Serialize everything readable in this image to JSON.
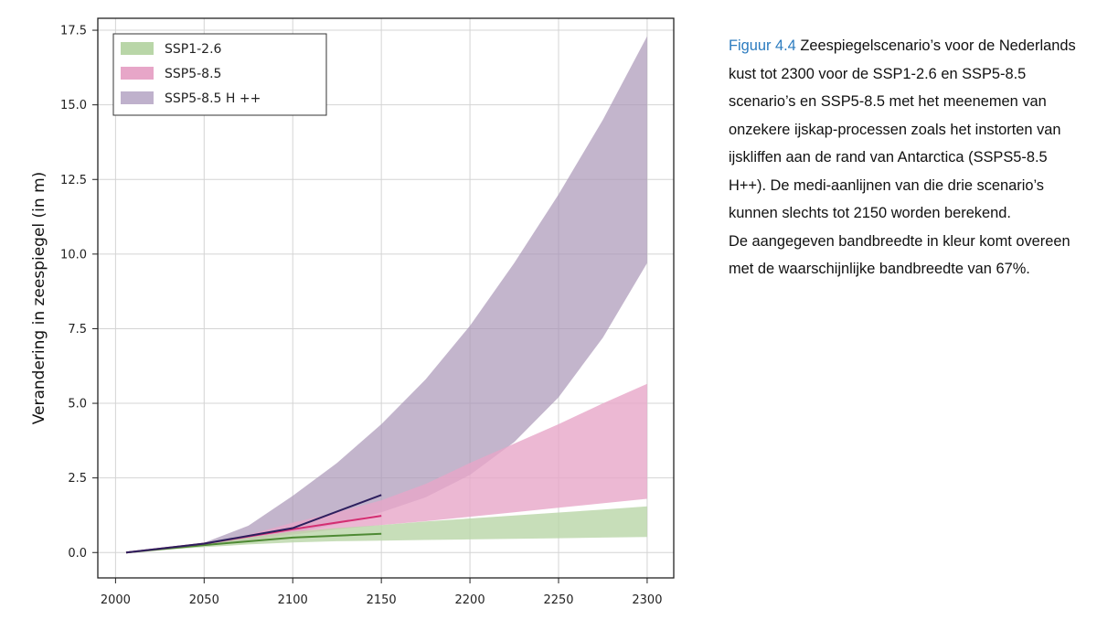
{
  "chart_data": {
    "type": "area",
    "xlabel": "",
    "ylabel": "Verandering in zeespiegel (in m)",
    "xlim": [
      1990,
      2315
    ],
    "ylim": [
      -0.85,
      17.9
    ],
    "xticks": [
      2000,
      2050,
      2100,
      2150,
      2200,
      2250,
      2300
    ],
    "xtick_labels": [
      "2000",
      "2050",
      "2100",
      "2150",
      "2200",
      "2250",
      "2300"
    ],
    "yticks": [
      0,
      2.5,
      5,
      7.5,
      10,
      12.5,
      15,
      17.5
    ],
    "ytick_labels": [
      "0.0",
      "2.5",
      "5.0",
      "7.5",
      "10.0",
      "12.5",
      "15.0",
      "17.5"
    ],
    "grid": true,
    "legend_position": "top-left",
    "bands": [
      {
        "name": "SSP5-8.5 H ++",
        "color": "#a996b6",
        "opacity": 0.7,
        "x": [
          2006,
          2020,
          2050,
          2075,
          2100,
          2125,
          2150,
          2175,
          2200,
          2225,
          2250,
          2275,
          2300
        ],
        "lower": [
          0,
          0.08,
          0.22,
          0.42,
          0.65,
          0.95,
          1.35,
          1.85,
          2.6,
          3.7,
          5.2,
          7.2,
          9.7
        ],
        "upper": [
          0,
          0.08,
          0.33,
          0.9,
          1.9,
          3.0,
          4.3,
          5.8,
          7.6,
          9.7,
          12.0,
          14.5,
          17.3
        ]
      },
      {
        "name": "SSP5-8.5",
        "color": "#e7a6c8",
        "opacity": 0.8,
        "x": [
          2006,
          2020,
          2050,
          2075,
          2100,
          2125,
          2150,
          2175,
          2200,
          2225,
          2250,
          2275,
          2300
        ],
        "lower": [
          0,
          0.07,
          0.22,
          0.4,
          0.6,
          0.78,
          0.92,
          1.05,
          1.2,
          1.35,
          1.5,
          1.65,
          1.8
        ],
        "upper": [
          0,
          0.08,
          0.3,
          0.6,
          1.0,
          1.35,
          1.75,
          2.3,
          3.0,
          3.65,
          4.3,
          5.0,
          5.65
        ]
      },
      {
        "name": "SSP1-2.6",
        "color": "#b9d6a8",
        "opacity": 0.8,
        "x": [
          2006,
          2020,
          2050,
          2075,
          2100,
          2125,
          2150,
          2175,
          2200,
          2225,
          2250,
          2275,
          2300
        ],
        "lower": [
          0,
          0.06,
          0.18,
          0.27,
          0.34,
          0.38,
          0.4,
          0.42,
          0.44,
          0.46,
          0.48,
          0.5,
          0.52
        ],
        "upper": [
          0,
          0.08,
          0.3,
          0.5,
          0.7,
          0.82,
          0.92,
          1.04,
          1.14,
          1.24,
          1.34,
          1.44,
          1.55
        ]
      }
    ],
    "median_lines": [
      {
        "name": "SSP1-2.6",
        "color": "#4e8a34",
        "x": [
          2006,
          2050,
          2100,
          2150
        ],
        "y": [
          0,
          0.25,
          0.5,
          0.63
        ]
      },
      {
        "name": "SSP5-8.5",
        "color": "#d42e72",
        "x": [
          2006,
          2050,
          2100,
          2150
        ],
        "y": [
          0,
          0.3,
          0.78,
          1.23
        ]
      },
      {
        "name": "SSP5-8.5 H ++",
        "color": "#2d1f5e",
        "x": [
          2006,
          2050,
          2100,
          2150
        ],
        "y": [
          0,
          0.3,
          0.82,
          1.93
        ]
      }
    ],
    "legend": [
      {
        "label": "SSP1-2.6",
        "color": "#b9d6a8"
      },
      {
        "label": "SSP5-8.5",
        "color": "#e7a6c8"
      },
      {
        "label": "SSP5-8.5 H ++",
        "color": "#bfb1cc"
      }
    ]
  },
  "caption": {
    "figure_label": "Figuur 4.4",
    "text": "Zeespiegelscenario’s voor de Nederlands kust tot 2300 voor de SSP1-2.6 en SSP5-8.5 scenario’s en SSP5-8.5 met het meenemen van onzekere ijskap-processen zoals het instorten van ijskliffen aan de rand van Antarctica (SSPS5-8.5 H++). De medi-aanlijnen van die drie scenario’s kunnen slechts tot 2150 worden berekend.",
    "text2": "De aangegeven bandbreedte in kleur komt overeen met de waarschijnlijke bandbreedte van 67%."
  }
}
